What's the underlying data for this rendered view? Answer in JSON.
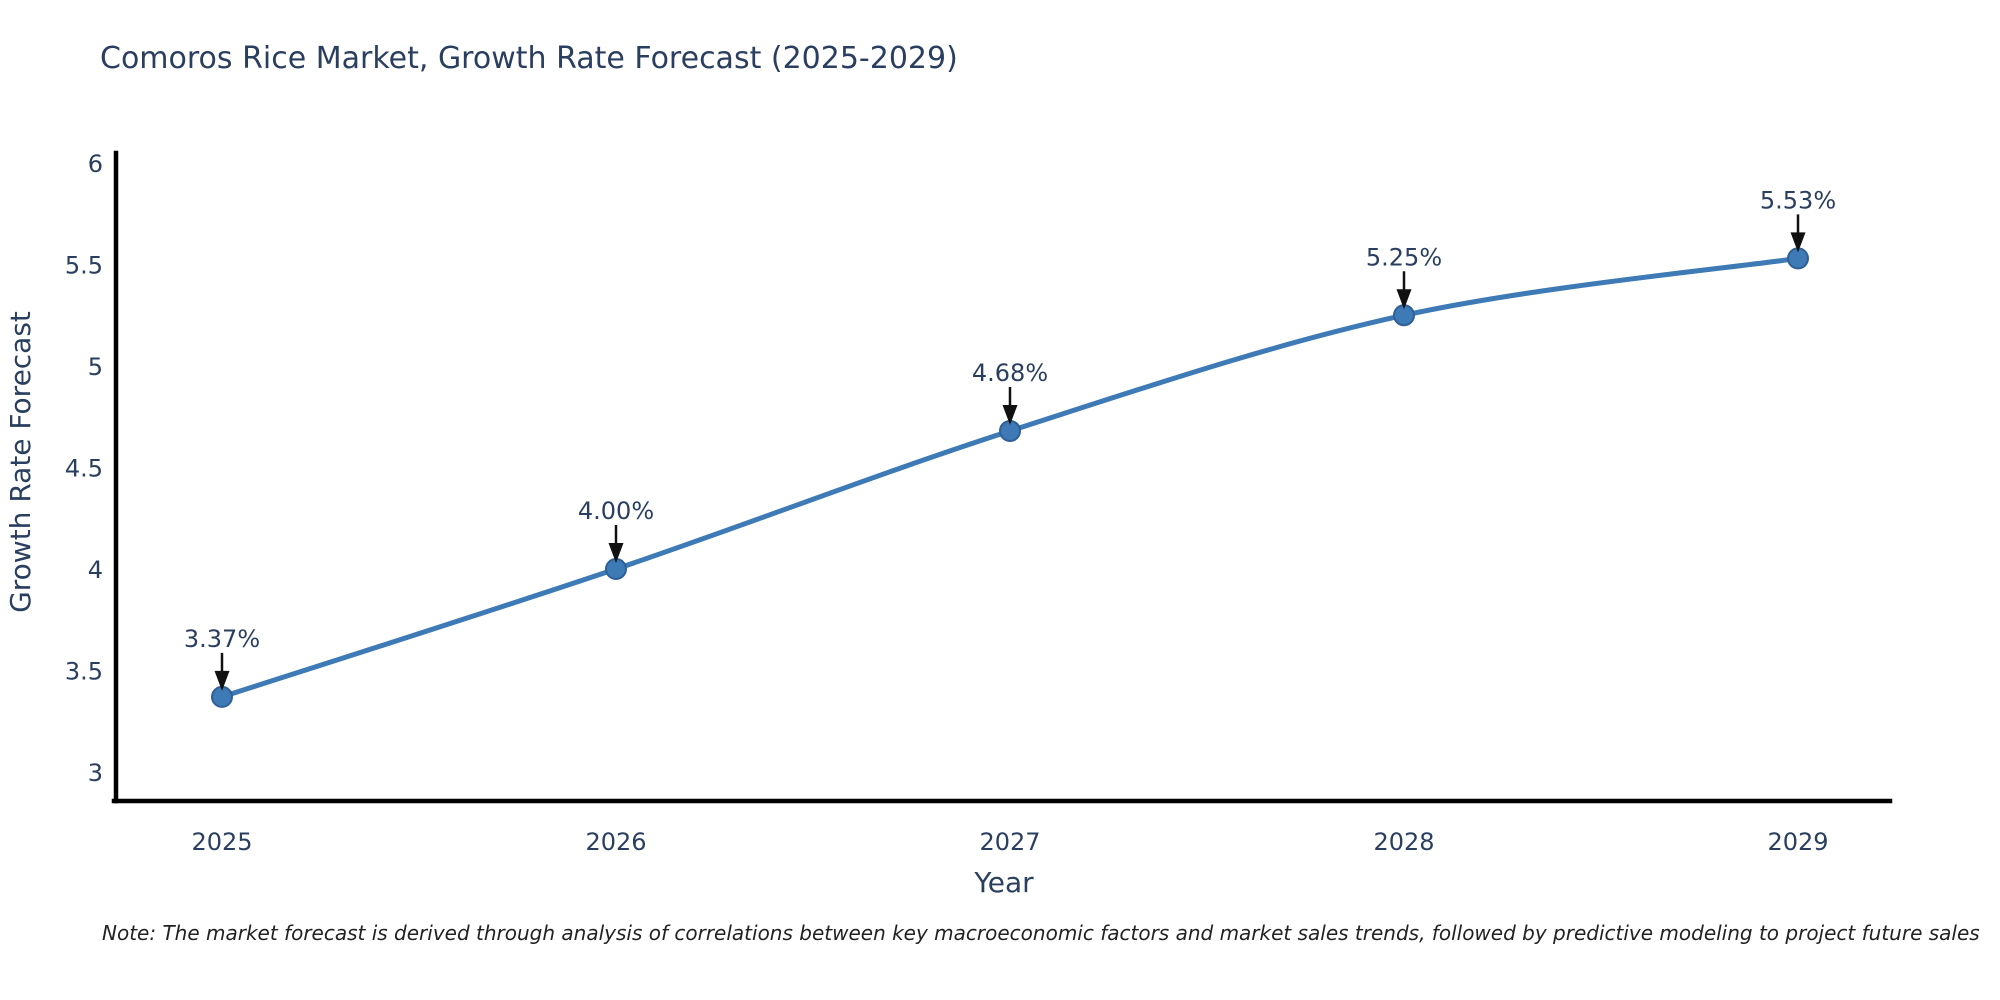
{
  "chart_data": {
    "type": "line",
    "title": "Comoros Rice Market, Growth Rate Forecast (2025-2029)",
    "xlabel": "Year",
    "ylabel": "Growth Rate Forecast",
    "x": [
      2025,
      2026,
      2027,
      2028,
      2029
    ],
    "y": [
      3.37,
      4.0,
      4.68,
      5.25,
      5.53
    ],
    "point_labels": [
      "3.37%",
      "4.00%",
      "4.68%",
      "5.25%",
      "5.53%"
    ],
    "xtick_labels": [
      "2025",
      "2026",
      "2027",
      "2028",
      "2029"
    ],
    "ytick_values": [
      6,
      5.5,
      5,
      4.5,
      4,
      3.5,
      3
    ],
    "ytick_labels": [
      "6",
      "5.5",
      "5",
      "4.5",
      "4",
      "3.5",
      "3"
    ],
    "ylim": [
      2.86,
      6.0
    ],
    "grid": false,
    "legend": "none",
    "line_color": "#3d7ab6",
    "marker_color": "#3d7ab6",
    "marker_edge_color": "#2e5f96",
    "arrow_color": "#111111",
    "text_color": "#2a3f5f",
    "axis_color": "#000000",
    "note": "Note: The market forecast is derived through analysis of correlations between key macroeconomic factors and market sales trends, followed by predictive modeling to project future sales"
  }
}
